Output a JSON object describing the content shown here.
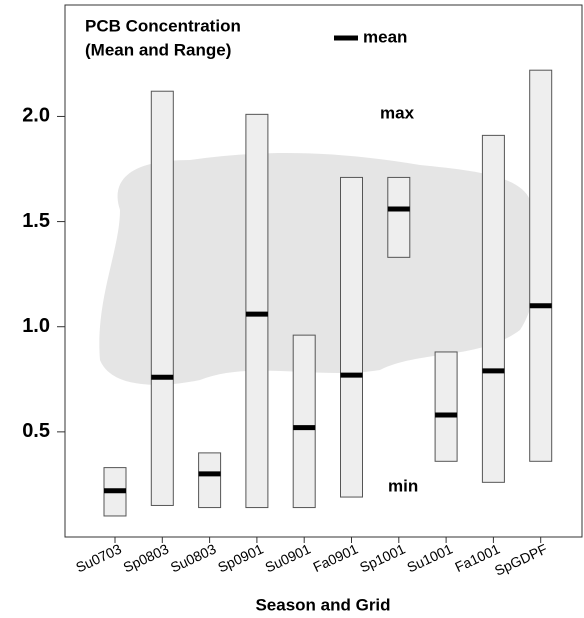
{
  "chart_data": {
    "type": "range",
    "title": [
      "PCB Concentration",
      "(Mean and Range)"
    ],
    "legend": "mean",
    "annotations": [
      "max",
      "min"
    ],
    "x_label": "Season and Grid",
    "categories": [
      "Su0703",
      "Sp0803",
      "Su0803",
      "Sp0901",
      "Su0901",
      "Fa0901",
      "Sp1001",
      "Su1001",
      "Fa1001",
      "SpGDPF"
    ],
    "max": [
      0.33,
      2.12,
      0.4,
      2.01,
      0.96,
      1.71,
      1.71,
      0.88,
      1.91,
      2.22
    ],
    "min": [
      0.1,
      0.15,
      0.14,
      0.14,
      0.14,
      0.19,
      1.33,
      0.36,
      0.26,
      0.36
    ],
    "mean": [
      0.22,
      0.76,
      0.3,
      1.06,
      0.52,
      0.77,
      1.56,
      0.58,
      0.79,
      1.1
    ],
    "bar_color": "#eeeeee",
    "mean_color": "#000000",
    "ylim": [
      0,
      2.53
    ],
    "yticks": [
      0.5,
      {
        "value": 1,
        "label": "1.0"
      },
      1.5,
      {
        "value": 2,
        "label": "2.0"
      }
    ]
  }
}
